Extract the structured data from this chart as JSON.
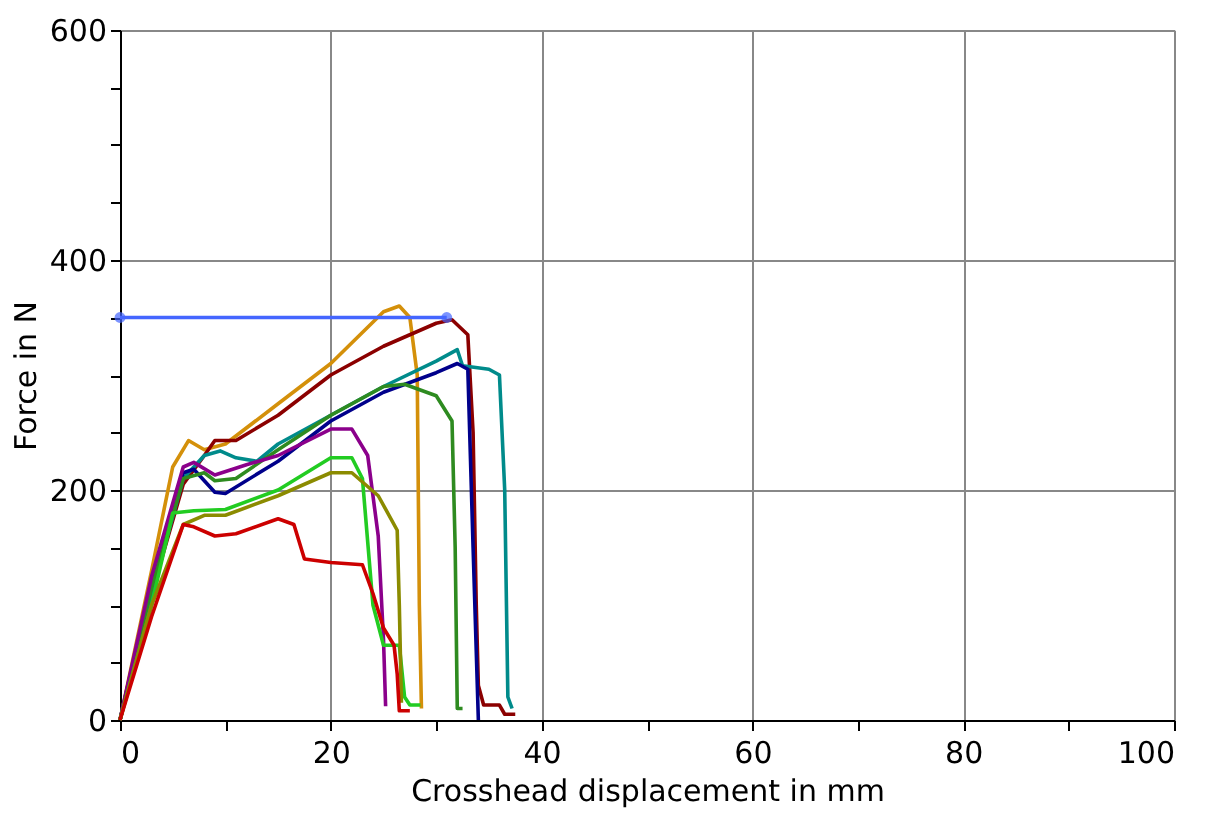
{
  "chart_data": {
    "type": "line",
    "xlabel": "Crosshead displacement in mm",
    "ylabel": "Force in N",
    "xlim": [
      0,
      100
    ],
    "ylim": [
      0,
      600
    ],
    "xticks": [
      0,
      {
        "value": 10,
        "label": null
      },
      20,
      {
        "value": 30,
        "label": null
      },
      40,
      {
        "value": 50,
        "label": null
      },
      60,
      {
        "value": 70,
        "label": null
      },
      80,
      {
        "value": 90,
        "label": null
      },
      100
    ],
    "yticks": [
      0,
      {
        "value": 50,
        "label": null
      },
      {
        "value": 100,
        "label": null
      },
      {
        "value": 150,
        "label": null
      },
      200,
      {
        "value": 250,
        "label": null
      },
      {
        "value": 300,
        "label": null
      },
      {
        "value": 350,
        "label": null
      },
      400,
      {
        "value": 450,
        "label": null
      },
      {
        "value": 500,
        "label": null
      },
      {
        "value": 550,
        "label": null
      },
      600
    ],
    "grid": true,
    "legend": false,
    "marker": "none",
    "line_style": "solid",
    "series": [
      {
        "color": "#d4900a",
        "x": [
          0,
          3,
          5,
          6.5,
          8,
          10,
          15,
          20,
          25,
          26.5,
          27.5,
          28.2,
          28.4,
          28.6
        ],
        "values": [
          0,
          130,
          220,
          243,
          235,
          240,
          275,
          310,
          355,
          360,
          350,
          300,
          100,
          10
        ]
      },
      {
        "color": "#8b0000",
        "x": [
          0,
          3,
          6,
          8,
          9,
          11,
          15,
          20,
          25,
          30,
          31.5,
          33,
          33.5,
          33.8,
          34,
          34.5,
          36,
          36.5,
          37.5
        ],
        "values": [
          0,
          110,
          205,
          230,
          243,
          243,
          265,
          300,
          325,
          345,
          348,
          335,
          250,
          100,
          30,
          13,
          13,
          5,
          5
        ]
      },
      {
        "color": "#008b8b",
        "x": [
          0,
          3,
          6,
          8,
          9.5,
          11,
          13,
          15,
          20,
          25,
          30,
          32,
          32.5,
          35,
          36,
          36.5,
          36.8,
          37.2
        ],
        "values": [
          0,
          110,
          210,
          230,
          234,
          228,
          225,
          240,
          265,
          290,
          312,
          322,
          308,
          305,
          300,
          200,
          20,
          10
        ]
      },
      {
        "color": "#00008b",
        "x": [
          0,
          3,
          6,
          7,
          9,
          10,
          15,
          20,
          25,
          30,
          32,
          33,
          33.5,
          34
        ],
        "values": [
          0,
          120,
          215,
          218,
          198,
          197,
          225,
          260,
          285,
          302,
          310,
          305,
          150,
          0
        ]
      },
      {
        "color": "#2e8b20",
        "x": [
          0,
          3,
          6,
          8,
          9,
          11,
          15,
          20,
          25,
          27,
          30,
          31.5,
          31.8,
          32,
          32.5
        ],
        "values": [
          0,
          115,
          210,
          215,
          208,
          210,
          235,
          265,
          290,
          292,
          282,
          260,
          150,
          10,
          10
        ]
      },
      {
        "color": "#8b008b",
        "x": [
          0,
          3,
          6,
          7,
          9,
          12,
          15,
          20,
          22,
          23.5,
          24.5,
          25,
          25.2
        ],
        "values": [
          0,
          125,
          220,
          224,
          213,
          222,
          230,
          253,
          253,
          230,
          160,
          70,
          12
        ]
      },
      {
        "color": "#22cc22",
        "x": [
          0,
          3,
          5,
          7,
          10,
          15,
          20,
          22,
          23,
          24,
          25,
          26.5,
          27,
          27.5,
          28.5
        ],
        "values": [
          0,
          100,
          180,
          182,
          183,
          200,
          228,
          228,
          210,
          100,
          65,
          65,
          20,
          13,
          13
        ]
      },
      {
        "color": "#8b8b00",
        "x": [
          0,
          3,
          6,
          8,
          10,
          15,
          20,
          22,
          24.5,
          26.3,
          26.5,
          26.7
        ],
        "values": [
          0,
          100,
          170,
          178,
          178,
          195,
          215,
          215,
          195,
          165,
          100,
          15
        ]
      },
      {
        "color": "#cc0000",
        "x": [
          0,
          3,
          6,
          7,
          9,
          11,
          15,
          16.5,
          17.5,
          20,
          23,
          24,
          25,
          26,
          26.3,
          26.5,
          27.5
        ],
        "values": [
          0,
          90,
          170,
          168,
          160,
          162,
          175,
          170,
          140,
          137,
          135,
          110,
          80,
          65,
          40,
          8,
          8
        ]
      },
      {
        "color": "#4466ff",
        "x": [
          0,
          31
        ],
        "values": [
          350,
          350
        ],
        "marker": "circle"
      }
    ]
  }
}
